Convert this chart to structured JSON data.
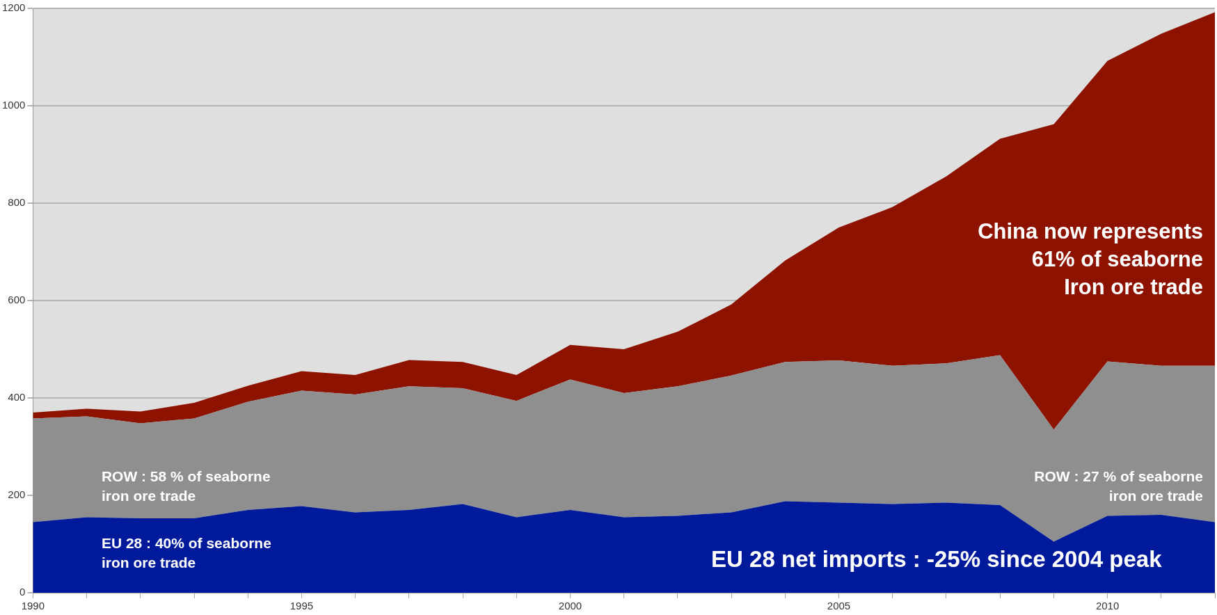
{
  "chart_data": {
    "type": "area",
    "stacked": true,
    "x": [
      1990,
      1991,
      1992,
      1993,
      1994,
      1995,
      1996,
      1997,
      1998,
      1999,
      2000,
      2001,
      2002,
      2003,
      2004,
      2005,
      2006,
      2007,
      2008,
      2009,
      2010,
      2011,
      2012
    ],
    "series": [
      {
        "color": "#001a9b",
        "values": [
          145,
          155,
          153,
          153,
          170,
          178,
          165,
          170,
          182,
          155,
          170,
          155,
          158,
          165,
          188,
          185,
          182,
          185,
          180,
          105,
          158,
          160,
          145
        ]
      },
      {
        "color": "#8f8f8f",
        "values": [
          213,
          207,
          195,
          205,
          222,
          237,
          242,
          254,
          238,
          239,
          268,
          255,
          266,
          281,
          286,
          292,
          284,
          286,
          308,
          230,
          317,
          306,
          321
        ]
      },
      {
        "color": "#8e1200",
        "values": [
          12,
          16,
          24,
          32,
          33,
          40,
          40,
          54,
          54,
          53,
          71,
          90,
          112,
          146,
          208,
          273,
          326,
          384,
          444,
          627,
          617,
          682,
          726
        ]
      }
    ],
    "xlim": [
      1990,
      2012
    ],
    "xticks": [
      1990,
      {
        "value": 1991,
        "label": null
      },
      {
        "value": 1992,
        "label": null
      },
      {
        "value": 1993,
        "label": null
      },
      {
        "value": 1994,
        "label": null
      },
      1995,
      {
        "value": 1996,
        "label": null
      },
      {
        "value": 1997,
        "label": null
      },
      {
        "value": 1998,
        "label": null
      },
      {
        "value": 1999,
        "label": null
      },
      2000,
      {
        "value": 2001,
        "label": null
      },
      {
        "value": 2002,
        "label": null
      },
      {
        "value": 2003,
        "label": null
      },
      {
        "value": 2004,
        "label": null
      },
      2005,
      {
        "value": 2006,
        "label": null
      },
      {
        "value": 2007,
        "label": null
      },
      {
        "value": 2008,
        "label": null
      },
      {
        "value": 2009,
        "label": null
      },
      2010,
      {
        "value": 2011,
        "label": null
      },
      {
        "value": 2012,
        "label": null
      }
    ],
    "ylim": [
      0,
      1200
    ],
    "yticks": [
      0,
      200,
      400,
      600,
      800,
      1000,
      1200
    ],
    "grid": "y",
    "legend": false,
    "annotations": [
      "ROW : 58 % of seaborne\niron ore trade",
      "EU 28 : 40% of seaborne\niron ore trade",
      "China now represents\n61% of seaborne\nIron ore trade",
      "ROW : 27 % of seaborne\niron ore trade",
      "EU 28 net imports : -25% since 2004 peak"
    ]
  }
}
